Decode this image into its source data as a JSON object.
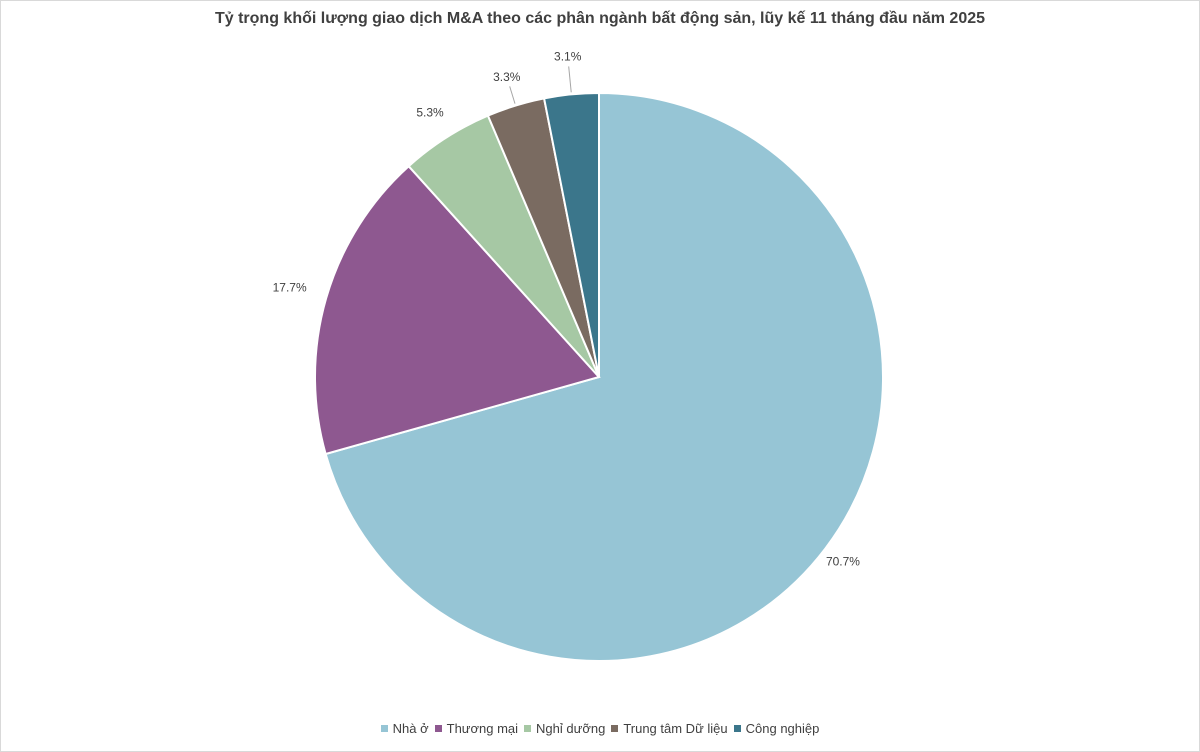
{
  "chart_data": {
    "type": "pie",
    "title": "Tỷ trọng khối lượng giao dịch M&A theo các phân ngành bất động sản, lũy kế 11 tháng đầu năm 2025",
    "start_angle_deg": 0,
    "direction": "clockwise",
    "slices": [
      {
        "label": "Nhà ở",
        "value": 70.7,
        "display": "70.7%",
        "color": "#96c5d5"
      },
      {
        "label": "Thương mại",
        "value": 17.7,
        "display": "17.7%",
        "color": "#8e5890"
      },
      {
        "label": "Nghỉ dưỡng",
        "value": 5.3,
        "display": "5.3%",
        "color": "#a6c8a4"
      },
      {
        "label": "Trung tâm Dữ liệu",
        "value": 3.3,
        "display": "3.3%",
        "color": "#7a6b61"
      },
      {
        "label": "Công nghiệp",
        "value": 3.1,
        "display": "3.1%",
        "color": "#3b768b"
      }
    ],
    "legend_position": "bottom"
  }
}
